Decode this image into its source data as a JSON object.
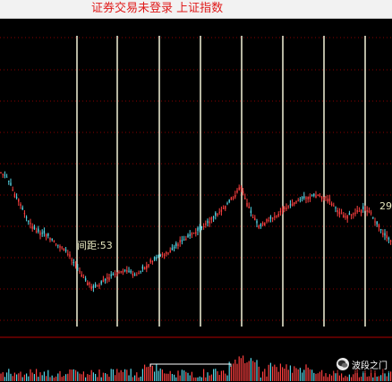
{
  "title_bar": {
    "text": "证券交易未登录  上证指数",
    "color": "#e01b1b"
  },
  "chart": {
    "interval_label": "间距:53",
    "right_value": "29",
    "label_color": "#e8e8c0",
    "grid_color": "#8a0000",
    "cycle_line_color": "#f2f2d8",
    "up_color": "#ff4040",
    "down_color": "#55d8e8",
    "cycle_line_count": 8
  },
  "watermark": {
    "icon": "wechat-icon",
    "text": "波段之门"
  }
}
